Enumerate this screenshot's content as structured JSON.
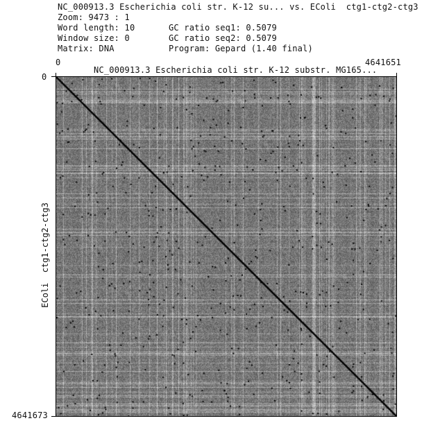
{
  "header": {
    "title": "NC_000913.3 Escherichia coli str. K-12 su... vs. EColi  ctg1-ctg2-ctg3",
    "zoom": "Zoom: 9473 : 1",
    "word_length": "Word length: 10",
    "window_size": "Window size: 0",
    "matrix": "Matrix: DNA",
    "gc_seq1": "GC ratio seq1: 0.5079",
    "gc_seq2": "GC ratio seq2: 0.5079",
    "program": "Program: Gepard (1.40 final)"
  },
  "plot": {
    "x_title": "NC_000913.3 Escherichia coli str. K-12 substr. MG165...",
    "y_title": "EColi  ctg1-ctg2-ctg3",
    "x_min_label": "0",
    "x_max_label": "4641651",
    "y_min_label": "0",
    "y_max_label": "4641673"
  },
  "chart_data": {
    "type": "dotplot",
    "x_range": [
      0,
      4641651
    ],
    "y_range": [
      0,
      4641673
    ],
    "main_diagonal": [
      [
        0,
        0
      ],
      [
        4641651,
        4641673
      ]
    ],
    "background_color": "#7a7a7a",
    "dot_color": "#000000"
  }
}
